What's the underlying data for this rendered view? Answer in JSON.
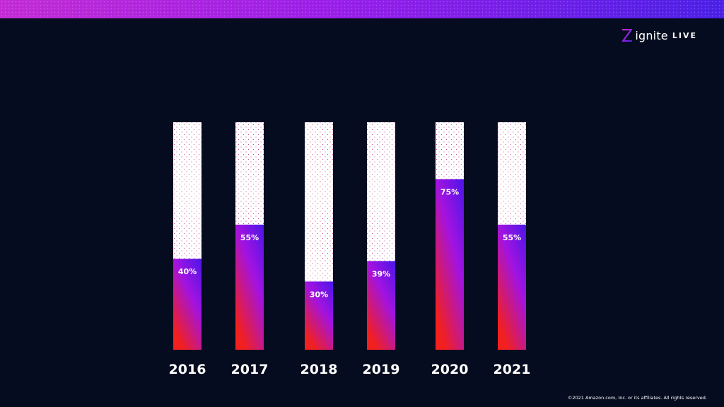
{
  "brand": {
    "name": "ignite",
    "suffix": "LIVE",
    "icon": "ignite-logo-icon"
  },
  "colors": {
    "background": "#050c1f",
    "bar_top": "#4a16e8",
    "bar_mid": "#a313e0",
    "bar_bottom": "#f2201e",
    "bar_track": "#ffffff",
    "track_dots": "#c0287a"
  },
  "chart_data": {
    "type": "bar",
    "categories": [
      "2016",
      "2017",
      "2018",
      "2019",
      "2020",
      "2021"
    ],
    "values": [
      40,
      55,
      30,
      39,
      75,
      55
    ],
    "value_labels": [
      "40%",
      "55%",
      "30%",
      "39%",
      "75%",
      "55%"
    ],
    "ylim": [
      0,
      100
    ],
    "grid": false,
    "legend": "none",
    "title": "",
    "xlabel": "",
    "ylabel": ""
  },
  "footer": {
    "copyright": "©2021 Amazon.com, Inc. or its affiliates. All rights reserved."
  }
}
